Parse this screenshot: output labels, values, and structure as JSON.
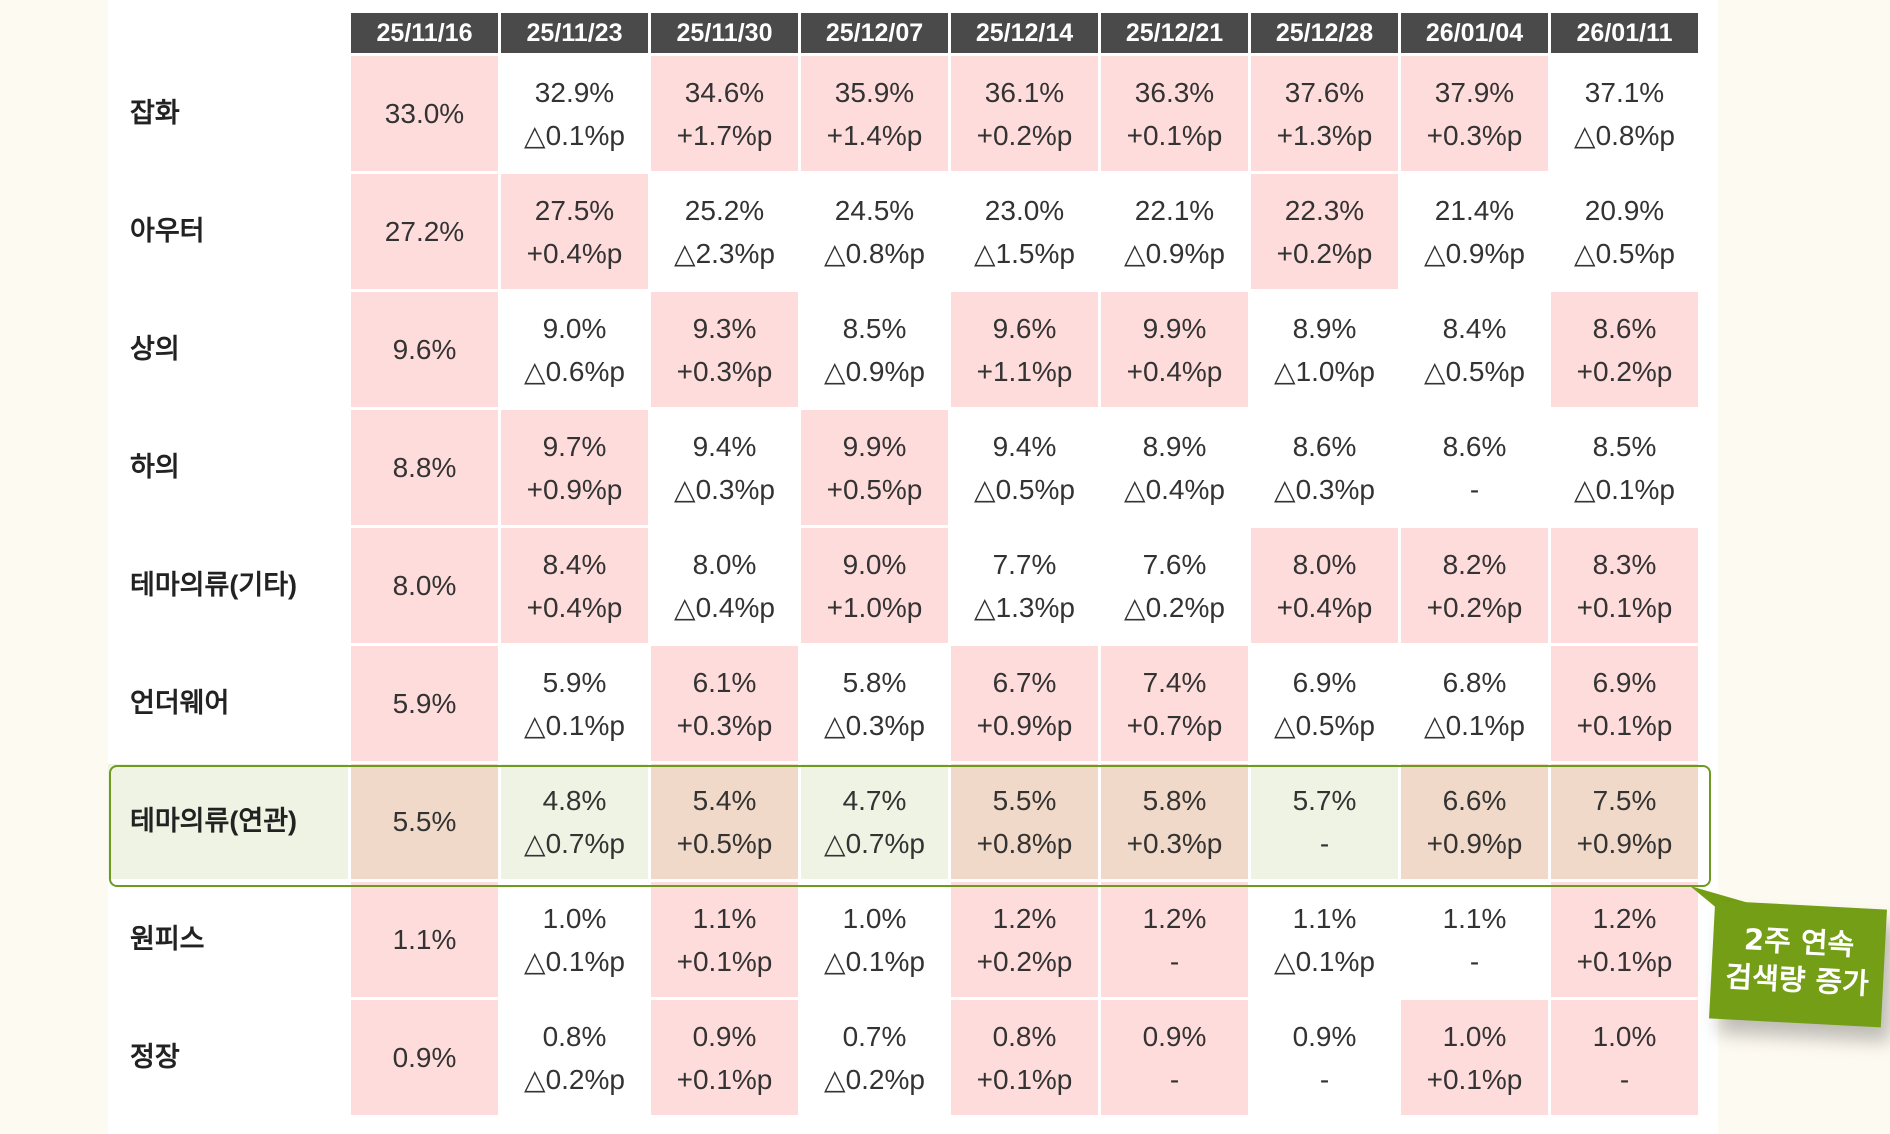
{
  "columns": [
    "25/11/16",
    "25/11/23",
    "25/11/30",
    "25/12/07",
    "25/12/14",
    "25/12/21",
    "25/12/28",
    "26/01/04",
    "26/01/11"
  ],
  "rows": [
    {
      "label": "잡화",
      "cells": [
        {
          "v": "33.0%",
          "d": "",
          "up": true
        },
        {
          "v": "32.9%",
          "d": "△0.1%p",
          "up": false
        },
        {
          "v": "34.6%",
          "d": "+1.7%p",
          "up": true
        },
        {
          "v": "35.9%",
          "d": "+1.4%p",
          "up": true
        },
        {
          "v": "36.1%",
          "d": "+0.2%p",
          "up": true
        },
        {
          "v": "36.3%",
          "d": "+0.1%p",
          "up": true
        },
        {
          "v": "37.6%",
          "d": "+1.3%p",
          "up": true
        },
        {
          "v": "37.9%",
          "d": "+0.3%p",
          "up": true
        },
        {
          "v": "37.1%",
          "d": "△0.8%p",
          "up": false
        }
      ]
    },
    {
      "label": "아우터",
      "cells": [
        {
          "v": "27.2%",
          "d": "",
          "up": true
        },
        {
          "v": "27.5%",
          "d": "+0.4%p",
          "up": true
        },
        {
          "v": "25.2%",
          "d": "△2.3%p",
          "up": false
        },
        {
          "v": "24.5%",
          "d": "△0.8%p",
          "up": false
        },
        {
          "v": "23.0%",
          "d": "△1.5%p",
          "up": false
        },
        {
          "v": "22.1%",
          "d": "△0.9%p",
          "up": false
        },
        {
          "v": "22.3%",
          "d": "+0.2%p",
          "up": true
        },
        {
          "v": "21.4%",
          "d": "△0.9%p",
          "up": false
        },
        {
          "v": "20.9%",
          "d": "△0.5%p",
          "up": false
        }
      ]
    },
    {
      "label": "상의",
      "cells": [
        {
          "v": "9.6%",
          "d": "",
          "up": true
        },
        {
          "v": "9.0%",
          "d": "△0.6%p",
          "up": false
        },
        {
          "v": "9.3%",
          "d": "+0.3%p",
          "up": true
        },
        {
          "v": "8.5%",
          "d": "△0.9%p",
          "up": false
        },
        {
          "v": "9.6%",
          "d": "+1.1%p",
          "up": true
        },
        {
          "v": "9.9%",
          "d": "+0.4%p",
          "up": true
        },
        {
          "v": "8.9%",
          "d": "△1.0%p",
          "up": false
        },
        {
          "v": "8.4%",
          "d": "△0.5%p",
          "up": false
        },
        {
          "v": "8.6%",
          "d": "+0.2%p",
          "up": true
        }
      ]
    },
    {
      "label": "하의",
      "cells": [
        {
          "v": "8.8%",
          "d": "",
          "up": true
        },
        {
          "v": "9.7%",
          "d": "+0.9%p",
          "up": true
        },
        {
          "v": "9.4%",
          "d": "△0.3%p",
          "up": false
        },
        {
          "v": "9.9%",
          "d": "+0.5%p",
          "up": true
        },
        {
          "v": "9.4%",
          "d": "△0.5%p",
          "up": false
        },
        {
          "v": "8.9%",
          "d": "△0.4%p",
          "up": false
        },
        {
          "v": "8.6%",
          "d": "△0.3%p",
          "up": false
        },
        {
          "v": "8.6%",
          "d": "-",
          "up": false
        },
        {
          "v": "8.5%",
          "d": "△0.1%p",
          "up": false
        }
      ]
    },
    {
      "label": "테마의류(기타)",
      "cells": [
        {
          "v": "8.0%",
          "d": "",
          "up": true
        },
        {
          "v": "8.4%",
          "d": "+0.4%p",
          "up": true
        },
        {
          "v": "8.0%",
          "d": "△0.4%p",
          "up": false
        },
        {
          "v": "9.0%",
          "d": "+1.0%p",
          "up": true
        },
        {
          "v": "7.7%",
          "d": "△1.3%p",
          "up": false
        },
        {
          "v": "7.6%",
          "d": "△0.2%p",
          "up": false
        },
        {
          "v": "8.0%",
          "d": "+0.4%p",
          "up": true
        },
        {
          "v": "8.2%",
          "d": "+0.2%p",
          "up": true
        },
        {
          "v": "8.3%",
          "d": "+0.1%p",
          "up": true
        }
      ]
    },
    {
      "label": "언더웨어",
      "cells": [
        {
          "v": "5.9%",
          "d": "",
          "up": true
        },
        {
          "v": "5.9%",
          "d": "△0.1%p",
          "up": false
        },
        {
          "v": "6.1%",
          "d": "+0.3%p",
          "up": true
        },
        {
          "v": "5.8%",
          "d": "△0.3%p",
          "up": false
        },
        {
          "v": "6.7%",
          "d": "+0.9%p",
          "up": true
        },
        {
          "v": "7.4%",
          "d": "+0.7%p",
          "up": true
        },
        {
          "v": "6.9%",
          "d": "△0.5%p",
          "up": false
        },
        {
          "v": "6.8%",
          "d": "△0.1%p",
          "up": false
        },
        {
          "v": "6.9%",
          "d": "+0.1%p",
          "up": true
        }
      ]
    },
    {
      "label": "테마의류(연관)",
      "highlight": true,
      "cells": [
        {
          "v": "5.5%",
          "d": "",
          "up": true
        },
        {
          "v": "4.8%",
          "d": "△0.7%p",
          "up": false
        },
        {
          "v": "5.4%",
          "d": "+0.5%p",
          "up": true
        },
        {
          "v": "4.7%",
          "d": "△0.7%p",
          "up": false
        },
        {
          "v": "5.5%",
          "d": "+0.8%p",
          "up": true
        },
        {
          "v": "5.8%",
          "d": "+0.3%p",
          "up": true
        },
        {
          "v": "5.7%",
          "d": "-",
          "up": false
        },
        {
          "v": "6.6%",
          "d": "+0.9%p",
          "up": true
        },
        {
          "v": "7.5%",
          "d": "+0.9%p",
          "up": true
        }
      ]
    },
    {
      "label": "원피스",
      "cells": [
        {
          "v": "1.1%",
          "d": "",
          "up": true
        },
        {
          "v": "1.0%",
          "d": "△0.1%p",
          "up": false
        },
        {
          "v": "1.1%",
          "d": "+0.1%p",
          "up": true
        },
        {
          "v": "1.0%",
          "d": "△0.1%p",
          "up": false
        },
        {
          "v": "1.2%",
          "d": "+0.2%p",
          "up": true
        },
        {
          "v": "1.2%",
          "d": "-",
          "up": true
        },
        {
          "v": "1.1%",
          "d": "△0.1%p",
          "up": false
        },
        {
          "v": "1.1%",
          "d": "-",
          "up": false
        },
        {
          "v": "1.2%",
          "d": "+0.1%p",
          "up": true
        }
      ]
    },
    {
      "label": "정장",
      "cells": [
        {
          "v": "0.9%",
          "d": "",
          "up": true
        },
        {
          "v": "0.8%",
          "d": "△0.2%p",
          "up": false
        },
        {
          "v": "0.9%",
          "d": "+0.1%p",
          "up": true
        },
        {
          "v": "0.7%",
          "d": "△0.2%p",
          "up": false
        },
        {
          "v": "0.8%",
          "d": "+0.1%p",
          "up": true
        },
        {
          "v": "0.9%",
          "d": "-",
          "up": true
        },
        {
          "v": "0.9%",
          "d": "-",
          "up": false
        },
        {
          "v": "1.0%",
          "d": "+0.1%p",
          "up": true
        },
        {
          "v": "1.0%",
          "d": "-",
          "up": true
        }
      ]
    }
  ],
  "callout": {
    "line1": "2주 연속",
    "line2": "검색량 증가"
  },
  "colors": {
    "up": "#ffdcdc",
    "highlight_border": "#6e9a1e",
    "callout": "#739e15",
    "header": "#4a4a4a"
  }
}
